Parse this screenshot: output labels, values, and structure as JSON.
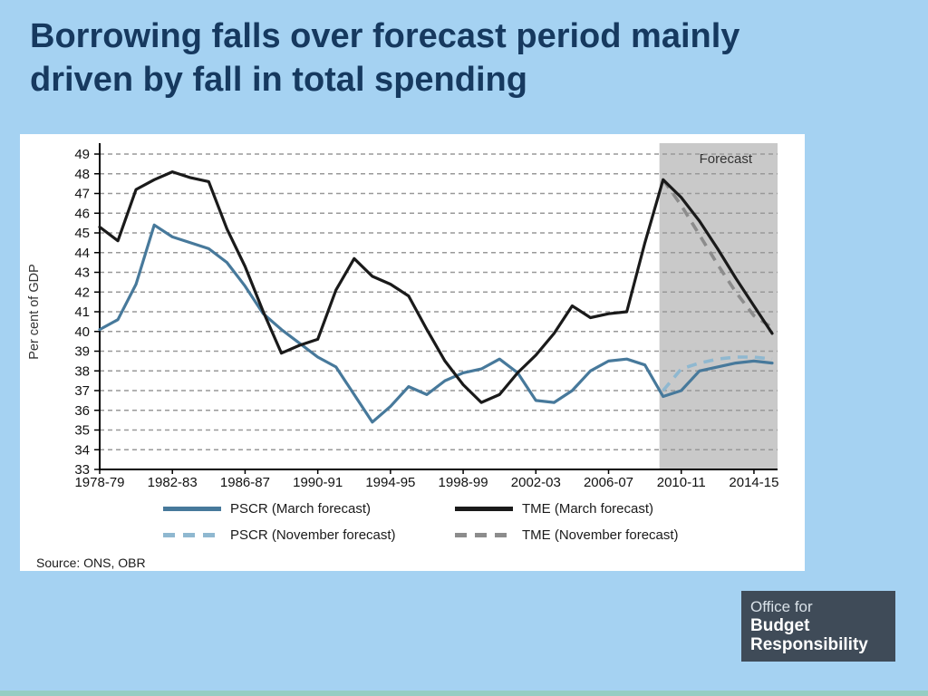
{
  "slide": {
    "title": "Borrowing falls over forecast period mainly driven by fall in total spending",
    "background_color": "#a5d2f2",
    "title_color": "#16395f",
    "bottom_strip_color": "#96cdc3"
  },
  "logo": {
    "line1": "Office for",
    "line2": "Budget",
    "line3": "Responsibility",
    "background_color": "#3f4b58"
  },
  "chart": {
    "ylabel": "Per cent of GDP",
    "source": "Source: ONS, OBR",
    "gridline_color": "#999999",
    "axis_color": "#000000"
  },
  "chart_data": {
    "type": "line",
    "title": "",
    "xlabel": "",
    "ylabel": "Per cent of GDP",
    "ylim": [
      33,
      49
    ],
    "ytick_step": 1,
    "grid": "dashed-horizontal",
    "legend_position": "bottom",
    "categories": [
      "1978-79",
      "1979-80",
      "1980-81",
      "1981-82",
      "1982-83",
      "1983-84",
      "1984-85",
      "1985-86",
      "1986-87",
      "1987-88",
      "1988-89",
      "1989-90",
      "1990-91",
      "1991-92",
      "1992-93",
      "1993-94",
      "1994-95",
      "1995-96",
      "1996-97",
      "1997-98",
      "1998-99",
      "1999-00",
      "2000-01",
      "2001-02",
      "2002-03",
      "2003-04",
      "2004-05",
      "2005-06",
      "2006-07",
      "2007-08",
      "2008-09",
      "2009-10",
      "2010-11",
      "2011-12",
      "2012-13",
      "2013-14",
      "2014-15",
      "2015-16"
    ],
    "x_tick_labels": [
      "1978-79",
      "1982-83",
      "1986-87",
      "1990-91",
      "1994-95",
      "1998-99",
      "2002-03",
      "2006-07",
      "2010-11",
      "2014-15"
    ],
    "forecast_band": {
      "label": "Forecast",
      "start_index": 30.8,
      "color": "#c9c9c9"
    },
    "series": [
      {
        "name": "PSCR (March forecast)",
        "color": "#47799b",
        "style": "solid",
        "values": [
          40.1,
          40.6,
          42.4,
          45.4,
          44.8,
          44.5,
          44.2,
          43.5,
          42.3,
          40.9,
          40.1,
          39.4,
          38.7,
          38.2,
          36.8,
          35.4,
          36.2,
          37.2,
          36.8,
          37.5,
          37.9,
          38.1,
          38.6,
          37.9,
          36.5,
          36.4,
          37.0,
          38.0,
          38.5,
          38.6,
          38.3,
          36.7,
          37.0,
          38.0,
          38.2,
          38.4,
          38.5,
          38.4
        ]
      },
      {
        "name": "TME (March forecast)",
        "color": "#1a1a1a",
        "style": "solid",
        "values": [
          45.3,
          44.6,
          47.2,
          47.7,
          48.1,
          47.8,
          47.6,
          45.2,
          43.3,
          41.0,
          38.9,
          39.3,
          39.6,
          42.1,
          43.7,
          42.8,
          42.4,
          41.8,
          40.1,
          38.5,
          37.3,
          36.4,
          36.8,
          37.9,
          38.8,
          39.9,
          41.3,
          40.7,
          40.9,
          41.0,
          44.5,
          47.7,
          46.8,
          45.6,
          44.2,
          42.7,
          41.3,
          39.9
        ]
      },
      {
        "name": "PSCR (November forecast)",
        "color": "#8fb8d0",
        "style": "dashed",
        "start_index": 31,
        "values": [
          37.0,
          38.1,
          38.4,
          38.6,
          38.7,
          38.7,
          38.6
        ]
      },
      {
        "name": "TME (November forecast)",
        "color": "#8c8c8c",
        "style": "dashed",
        "start_index": 31,
        "values": [
          47.7,
          46.4,
          44.9,
          43.4,
          42.0,
          40.8,
          40.2
        ]
      }
    ]
  }
}
